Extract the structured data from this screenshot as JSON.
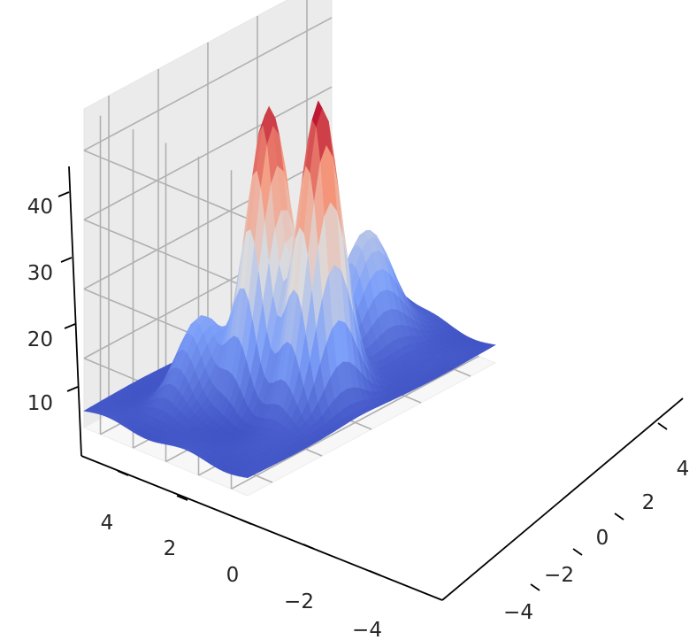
{
  "chart_data": {
    "type": "surface3d",
    "colormap": "coolwarm",
    "grid": true,
    "x_ticks": [
      "−4",
      "−2",
      "0",
      "2",
      "4"
    ],
    "y_ticks": [
      "−4",
      "−2",
      "0",
      "2",
      "4"
    ],
    "z_ticks": [
      "10",
      "20",
      "30",
      "40"
    ],
    "xlim": [
      -5,
      5
    ],
    "ylim": [
      -5,
      5
    ],
    "zlim": [
      0,
      46
    ],
    "surface": {
      "x_range": [
        -5,
        5
      ],
      "y_range": [
        -5,
        5
      ],
      "resolution": 40,
      "base": 2.5,
      "peaks": [
        {
          "x": 0.2,
          "y": -1.0,
          "height": 41,
          "width": 0.75
        },
        {
          "x": 2.6,
          "y": -0.5,
          "height": 43.5,
          "width": 0.75
        },
        {
          "x": 0.8,
          "y": 2.6,
          "height": 17,
          "width": 0.9
        },
        {
          "x": -2.0,
          "y": -2.3,
          "height": 11,
          "width": 0.8
        },
        {
          "x": -1.0,
          "y": 3.6,
          "height": 10,
          "width": 0.8
        }
      ]
    }
  }
}
